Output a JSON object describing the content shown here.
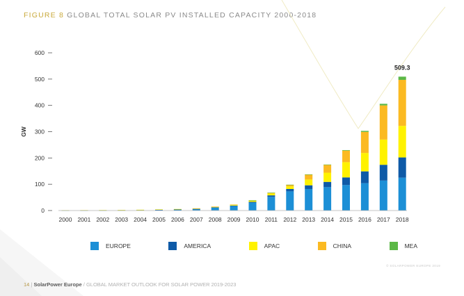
{
  "header": {
    "figure_label": "FIGURE 8",
    "title": "GLOBAL TOTAL SOLAR PV INSTALLED CAPACITY 2000-2018"
  },
  "chart_data": {
    "type": "bar",
    "stacked": true,
    "title": "GLOBAL TOTAL SOLAR PV INSTALLED CAPACITY 2000-2018",
    "xlabel": "",
    "ylabel": "GW",
    "ylim": [
      0,
      600
    ],
    "yticks": [
      0,
      100,
      200,
      300,
      400,
      500,
      600
    ],
    "grid": false,
    "legend_position": "bottom",
    "categories": [
      "2000",
      "2001",
      "2002",
      "2003",
      "2004",
      "2005",
      "2006",
      "2007",
      "2008",
      "2009",
      "2010",
      "2011",
      "2012",
      "2013",
      "2014",
      "2015",
      "2016",
      "2017",
      "2018"
    ],
    "series": [
      {
        "name": "EUROPE",
        "color": "#1c8fd6",
        "values": [
          0.4,
          0.6,
          0.8,
          1.0,
          1.6,
          2.6,
          3.5,
          5.5,
          11,
          17,
          30,
          52,
          73,
          82,
          89,
          97,
          104,
          114,
          125
        ]
      },
      {
        "name": "AMERICA",
        "color": "#0e5aa7",
        "values": [
          0.2,
          0.2,
          0.2,
          0.3,
          0.3,
          0.4,
          0.5,
          0.7,
          1.2,
          1.9,
          3.0,
          5.8,
          9,
          14,
          20,
          29,
          45,
          60,
          77
        ]
      },
      {
        "name": "APAC",
        "color": "#fff200",
        "values": [
          0.6,
          0.8,
          0.9,
          1.0,
          1.2,
          1.5,
          1.8,
          2.0,
          2.5,
          3.5,
          5,
          7,
          10,
          22,
          35,
          58,
          70,
          96,
          120
        ]
      },
      {
        "name": "CHINA",
        "color": "#fbba22",
        "values": [
          0,
          0,
          0,
          0,
          0,
          0,
          0,
          0.1,
          0.2,
          0.4,
          0.8,
          3,
          6,
          19,
          30,
          44,
          80,
          130,
          175
        ]
      },
      {
        "name": "MEA",
        "color": "#5cb847",
        "values": [
          0,
          0,
          0,
          0,
          0,
          0,
          0,
          0,
          0,
          0,
          0.1,
          0.1,
          0.3,
          0.6,
          1.0,
          2.0,
          4.0,
          6.0,
          12.3
        ]
      }
    ],
    "totals": [
      1.2,
      1.6,
      1.9,
      2.3,
      3.1,
      4.5,
      5.8,
      8.3,
      14.9,
      22.8,
      38.9,
      67.9,
      98.3,
      137.6,
      175,
      230,
      303,
      406,
      509.3
    ],
    "annotations": [
      {
        "category": "2018",
        "text": "509.3"
      }
    ]
  },
  "legend": [
    {
      "name": "EUROPE",
      "color": "#1c8fd6"
    },
    {
      "name": "AMERICA",
      "color": "#0e5aa7"
    },
    {
      "name": "APAC",
      "color": "#fff200"
    },
    {
      "name": "CHINA",
      "color": "#fbba22"
    },
    {
      "name": "MEA",
      "color": "#5cb847"
    }
  ],
  "copyright": "© SOLARPOWER EUROPE 2019",
  "footer": {
    "page_number": "14",
    "brand": "SolarPower Europe",
    "report_title": "GLOBAL MARKET OUTLOOK FOR SOLAR POWER 2019-2023"
  }
}
